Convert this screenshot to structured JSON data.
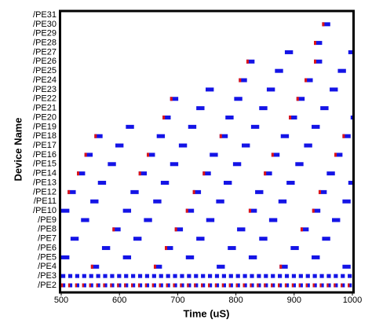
{
  "chart_data": {
    "type": "timeline",
    "xlabel": "Time (uS)",
    "ylabel": "Device Name",
    "xlim": [
      500,
      1000
    ],
    "xticks": [
      500,
      600,
      700,
      800,
      900,
      1000
    ],
    "busy_color": "#1414e6",
    "wait_color": "#e01414",
    "categories": [
      "/PE2",
      "/PE3",
      "/PE4",
      "/PE5",
      "/PE6",
      "/PE7",
      "/PE8",
      "/PE9",
      "/PE10",
      "/PE11",
      "/PE12",
      "/PE13",
      "/PE14",
      "/PE15",
      "/PE16",
      "/PE17",
      "/PE18",
      "/PE19",
      "/PE20",
      "/PE21",
      "/PE22",
      "/PE23",
      "/PE24",
      "/PE25",
      "/PE26",
      "/PE27",
      "/PE28",
      "/PE29",
      "/PE30",
      "/PE31"
    ],
    "busy": [
      [
        [
          500,
          507
        ],
        [
          512,
          519
        ],
        [
          524,
          531
        ],
        [
          536,
          543
        ],
        [
          548,
          555
        ],
        [
          560,
          567
        ],
        [
          572,
          579
        ],
        [
          584,
          591
        ],
        [
          596,
          603
        ],
        [
          608,
          615
        ],
        [
          620,
          627
        ],
        [
          632,
          639
        ],
        [
          644,
          651
        ],
        [
          656,
          663
        ],
        [
          668,
          675
        ],
        [
          680,
          687
        ],
        [
          692,
          699
        ],
        [
          704,
          711
        ],
        [
          716,
          723
        ],
        [
          728,
          735
        ],
        [
          740,
          747
        ],
        [
          752,
          759
        ],
        [
          764,
          771
        ],
        [
          776,
          783
        ],
        [
          788,
          795
        ],
        [
          800,
          807
        ],
        [
          812,
          819
        ],
        [
          824,
          831
        ],
        [
          836,
          843
        ],
        [
          848,
          855
        ],
        [
          860,
          867
        ],
        [
          872,
          879
        ],
        [
          884,
          891
        ],
        [
          896,
          903
        ],
        [
          908,
          915
        ],
        [
          920,
          927
        ],
        [
          932,
          939
        ],
        [
          944,
          951
        ],
        [
          956,
          963
        ],
        [
          968,
          975
        ],
        [
          980,
          987
        ],
        [
          992,
          999
        ]
      ],
      [
        [
          500,
          507
        ],
        [
          512,
          519
        ],
        [
          524,
          531
        ],
        [
          536,
          543
        ],
        [
          548,
          555
        ],
        [
          560,
          567
        ],
        [
          572,
          579
        ],
        [
          584,
          591
        ],
        [
          596,
          603
        ],
        [
          608,
          615
        ],
        [
          620,
          627
        ],
        [
          632,
          639
        ],
        [
          644,
          651
        ],
        [
          656,
          663
        ],
        [
          668,
          675
        ],
        [
          680,
          687
        ],
        [
          692,
          699
        ],
        [
          704,
          711
        ],
        [
          716,
          723
        ],
        [
          728,
          735
        ],
        [
          740,
          747
        ],
        [
          752,
          759
        ],
        [
          764,
          771
        ],
        [
          776,
          783
        ],
        [
          788,
          795
        ],
        [
          800,
          807
        ],
        [
          812,
          819
        ],
        [
          824,
          831
        ],
        [
          836,
          843
        ],
        [
          848,
          855
        ],
        [
          860,
          867
        ],
        [
          872,
          879
        ],
        [
          884,
          891
        ],
        [
          896,
          903
        ],
        [
          908,
          915
        ],
        [
          920,
          927
        ],
        [
          932,
          939
        ],
        [
          944,
          951
        ],
        [
          956,
          963
        ],
        [
          968,
          975
        ],
        [
          980,
          987
        ],
        [
          992,
          999
        ]
      ],
      [
        [
          551,
          565
        ],
        [
          659,
          673
        ],
        [
          767,
          781
        ],
        [
          875,
          889
        ],
        [
          983,
          997
        ]
      ],
      [
        [
          500,
          514
        ],
        [
          606,
          620
        ],
        [
          714,
          728
        ],
        [
          822,
          836
        ],
        [
          930,
          944
        ]
      ],
      [
        [
          570,
          584
        ],
        [
          678,
          692
        ],
        [
          786,
          800
        ],
        [
          894,
          908
        ]
      ],
      [
        [
          516,
          530
        ],
        [
          624,
          638
        ],
        [
          732,
          746
        ],
        [
          840,
          854
        ],
        [
          948,
          962
        ]
      ],
      [
        [
          588,
          602
        ],
        [
          695,
          709
        ],
        [
          802,
          816
        ],
        [
          911,
          925
        ]
      ],
      [
        [
          534,
          548
        ],
        [
          642,
          656
        ],
        [
          749,
          763
        ],
        [
          857,
          871
        ],
        [
          965,
          979
        ]
      ],
      [
        [
          500,
          514
        ],
        [
          606,
          620
        ],
        [
          714,
          728
        ],
        [
          822,
          836
        ],
        [
          931,
          945
        ]
      ],
      [
        [
          550,
          564
        ],
        [
          658,
          672
        ],
        [
          766,
          780
        ],
        [
          873,
          887
        ],
        [
          983,
          997
        ]
      ],
      [
        [
          511,
          525
        ],
        [
          619,
          633
        ],
        [
          726,
          740
        ],
        [
          833,
          847
        ],
        [
          942,
          956
        ]
      ],
      [
        [
          563,
          577
        ],
        [
          671,
          685
        ],
        [
          779,
          793
        ],
        [
          887,
          901
        ],
        [
          993,
          1000
        ]
      ],
      [
        [
          527,
          541
        ],
        [
          633,
          647
        ],
        [
          743,
          757
        ],
        [
          848,
          862
        ],
        [
          956,
          970
        ]
      ],
      [
        [
          580,
          594
        ],
        [
          687,
          701
        ],
        [
          795,
          809
        ],
        [
          902,
          916
        ]
      ],
      [
        [
          540,
          554
        ],
        [
          647,
          661
        ],
        [
          755,
          769
        ],
        [
          861,
          875
        ],
        [
          969,
          983
        ]
      ],
      [
        [
          593,
          607
        ],
        [
          702,
          716
        ],
        [
          810,
          824
        ],
        [
          917,
          931
        ]
      ],
      [
        [
          557,
          571
        ],
        [
          664,
          678
        ],
        [
          772,
          786
        ],
        [
          877,
          891
        ],
        [
          983,
          997
        ]
      ],
      [
        [
          611,
          625
        ],
        [
          718,
          732
        ],
        [
          826,
          840
        ],
        [
          930,
          944
        ]
      ],
      [
        [
          674,
          688
        ],
        [
          782,
          796
        ],
        [
          891,
          905
        ],
        [
          997,
          1000
        ]
      ],
      [
        [
          732,
          746
        ],
        [
          840,
          854
        ],
        [
          945,
          959
        ]
      ],
      [
        [
          687,
          701
        ],
        [
          797,
          811
        ],
        [
          904,
          918
        ]
      ],
      [
        [
          748,
          762
        ],
        [
          853,
          867
        ],
        [
          961,
          975
        ]
      ],
      [
        [
          805,
          819
        ],
        [
          918,
          932
        ]
      ],
      [
        [
          867,
          881
        ],
        [
          975,
          989
        ]
      ],
      [
        [
          818,
          832
        ],
        [
          934,
          948
        ]
      ],
      [
        [
          884,
          898
        ],
        [
          993,
          1000
        ]
      ],
      [
        [
          934,
          948
        ]
      ],
      [],
      [
        [
          948,
          962
        ]
      ],
      []
    ],
    "wait": [
      [
        [
          500,
          503
        ],
        [
          512,
          515
        ],
        [
          524,
          527
        ],
        [
          536,
          539
        ],
        [
          548,
          551
        ],
        [
          560,
          563
        ],
        [
          572,
          575
        ],
        [
          584,
          587
        ],
        [
          596,
          599
        ],
        [
          608,
          611
        ],
        [
          620,
          623
        ],
        [
          632,
          635
        ],
        [
          644,
          647
        ],
        [
          656,
          659
        ],
        [
          668,
          671
        ],
        [
          680,
          683
        ],
        [
          692,
          695
        ],
        [
          704,
          707
        ],
        [
          716,
          719
        ],
        [
          728,
          731
        ],
        [
          740,
          743
        ],
        [
          752,
          755
        ],
        [
          764,
          767
        ],
        [
          776,
          779
        ],
        [
          788,
          791
        ],
        [
          800,
          803
        ],
        [
          812,
          815
        ],
        [
          824,
          827
        ],
        [
          836,
          839
        ],
        [
          848,
          851
        ],
        [
          860,
          863
        ],
        [
          872,
          875
        ],
        [
          884,
          887
        ],
        [
          896,
          899
        ],
        [
          908,
          911
        ],
        [
          920,
          923
        ],
        [
          932,
          935
        ],
        [
          944,
          947
        ],
        [
          956,
          959
        ],
        [
          968,
          971
        ],
        [
          980,
          983
        ],
        [
          992,
          995
        ]
      ],
      [],
      [
        [
          551,
          555
        ],
        [
          659,
          663
        ],
        [
          875,
          879
        ]
      ],
      [],
      [
        [
          678,
          682
        ]
      ],
      [],
      [
        [
          588,
          592
        ],
        [
          695,
          699
        ],
        [
          911,
          915
        ]
      ],
      [],
      [
        [
          714,
          718
        ],
        [
          822,
          826
        ],
        [
          931,
          935
        ]
      ],
      [],
      [
        [
          511,
          515
        ],
        [
          726,
          730
        ],
        [
          942,
          946
        ]
      ],
      [],
      [
        [
          527,
          531
        ],
        [
          633,
          637
        ],
        [
          743,
          747
        ],
        [
          848,
          852
        ]
      ],
      [],
      [
        [
          540,
          544
        ],
        [
          647,
          651
        ],
        [
          861,
          865
        ],
        [
          969,
          973
        ]
      ],
      [],
      [
        [
          557,
          561
        ],
        [
          772,
          776
        ],
        [
          983,
          987
        ]
      ],
      [],
      [
        [
          674,
          678
        ],
        [
          891,
          895
        ]
      ],
      [],
      [
        [
          687,
          691
        ],
        [
          904,
          908
        ]
      ],
      [],
      [
        [
          805,
          809
        ],
        [
          918,
          922
        ]
      ],
      [],
      [
        [
          818,
          822
        ],
        [
          934,
          938
        ]
      ],
      [],
      [
        [
          934,
          938
        ]
      ],
      [],
      [
        [
          948,
          952
        ]
      ],
      []
    ]
  }
}
